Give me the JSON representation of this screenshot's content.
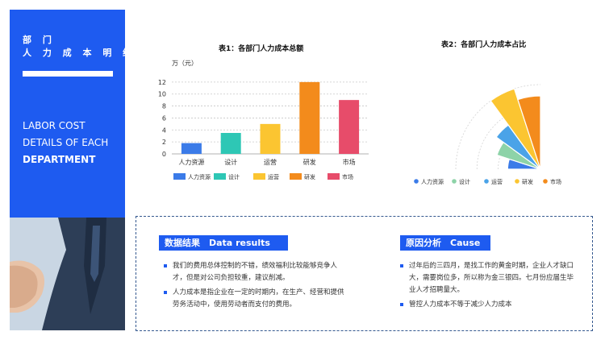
{
  "sidebar": {
    "title_cn_line1": "部 门",
    "title_cn_line2": "人 力 成 本 明 细",
    "title_en_line1": "LABOR COST",
    "title_en_line2": "DETAILS OF EACH",
    "title_en_line3": "DEPARTMENT"
  },
  "bar_chart_header": {
    "title": "表1：各部门人力成本总额",
    "unit": "万（元）"
  },
  "pie_chart_header": {
    "title": "表2：各部门人力成本占比"
  },
  "chart_data": [
    {
      "type": "bar",
      "title": "表1：各部门人力成本总额",
      "ylabel": "万（元）",
      "categories": [
        "人力资源",
        "设计",
        "运营",
        "研发",
        "市场"
      ],
      "values": [
        1.8,
        3.5,
        5,
        12,
        9
      ],
      "colors": [
        "#3b7be8",
        "#2ec7b5",
        "#fbc531",
        "#f38b1c",
        "#e74c6a"
      ],
      "ylim": [
        0,
        14
      ],
      "yticks": [
        0,
        2,
        4,
        6,
        8,
        10,
        12
      ],
      "grid": true,
      "legend": "bottom"
    },
    {
      "type": "pie",
      "title": "表2：各部门人力成本占比",
      "categories": [
        "人力资源",
        "设计",
        "运营",
        "研发",
        "市场"
      ],
      "values": [
        1.8,
        3.5,
        5,
        12,
        9
      ],
      "colors": [
        "#3b7be8",
        "#8dd3a8",
        "#4aa3e8",
        "#fbc531",
        "#f38b1c"
      ],
      "variant": "rose",
      "legend": "bottom"
    }
  ],
  "results": {
    "heading": "数据结果　Data results",
    "items": [
      "我们的费用总体控制的不错，绩效福利比较能够竞争人才，但是对公司负担较重，建议削减。",
      "人力成本是指企业在一定的时期内，在生产、经营和提供劳务活动中，使用劳动者而支付的费用。"
    ]
  },
  "causes": {
    "heading": "原因分析　Cause",
    "items": [
      "过年后的三四月，是找工作的黄金时期，企业人才缺口大，需要岗位多，所以称为金三银四。七月份应届生毕业人才招聘量大。",
      "管控人力成本不等于减少人力成本"
    ]
  }
}
